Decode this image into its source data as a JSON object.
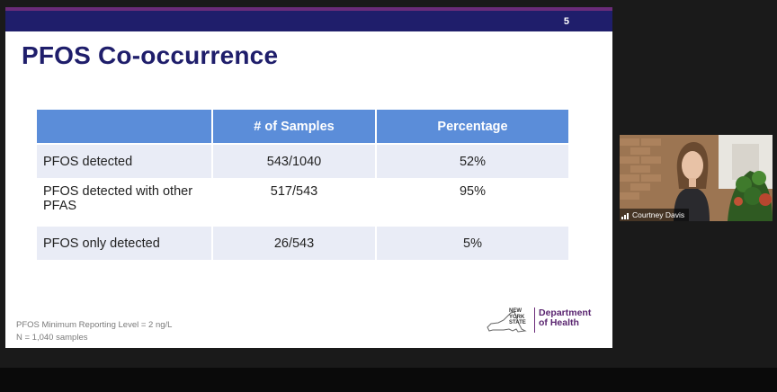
{
  "slide": {
    "number": "5",
    "title": "PFOS Co-occurrence",
    "table": {
      "headers": [
        "",
        "# of Samples",
        "Percentage"
      ],
      "rows": [
        {
          "label": "PFOS detected",
          "samples": "543/1040",
          "percentage": "52%"
        },
        {
          "label": "PFOS detected with other PFAS",
          "samples": "517/543",
          "percentage": "95%"
        },
        {
          "label": "PFOS only detected",
          "samples": "26/543",
          "percentage": "5%"
        }
      ]
    },
    "footnotes": [
      "PFOS Minimum Reporting Level = 2 ng/L",
      "N = 1,040 samples"
    ],
    "logo": {
      "state_words": [
        "NEW",
        "YORK",
        "STATE"
      ],
      "dept_line1": "Department",
      "dept_line2": "of Health"
    }
  },
  "participant": {
    "name": "Courtney Davis"
  },
  "colors": {
    "header_bg": "#1f1e6b",
    "table_header": "#5b8dd9",
    "row_alt": "#e9ecf6",
    "dept_purple": "#5a2570"
  }
}
